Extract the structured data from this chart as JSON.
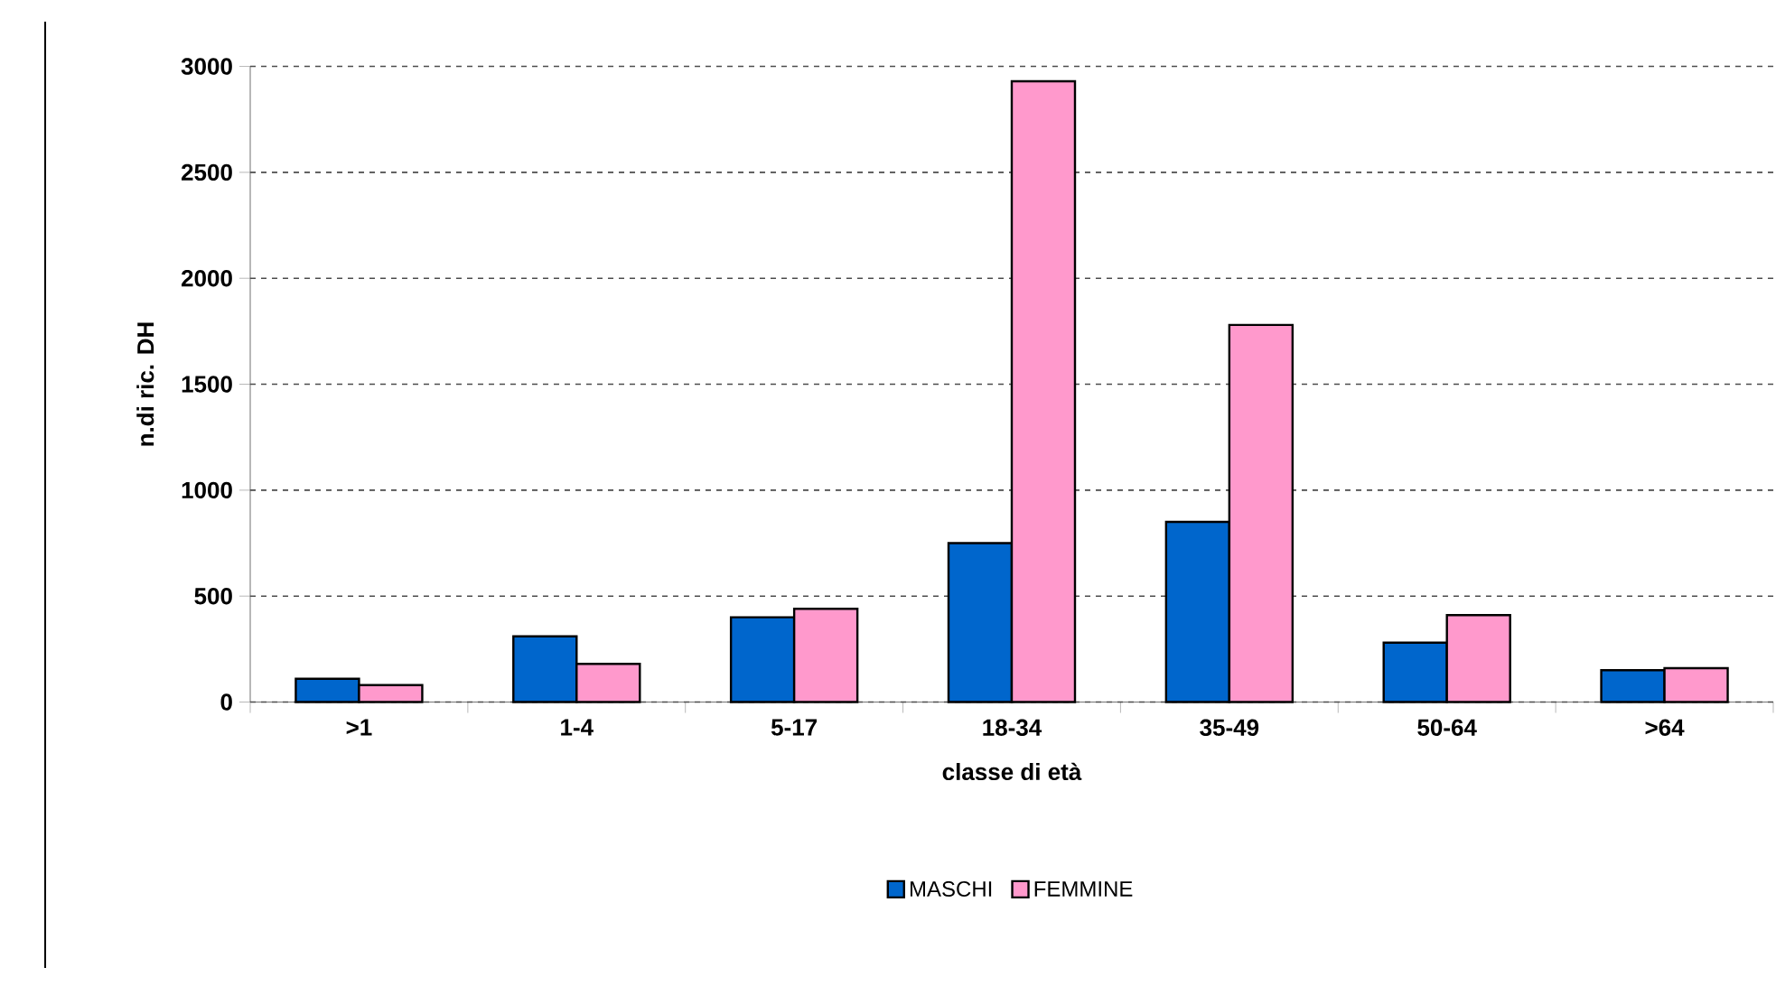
{
  "chart_data": {
    "type": "bar",
    "xlabel": "classe di età",
    "ylabel": "n.di ric. DH",
    "categories": [
      ">1",
      "1-4",
      "5-17",
      "18-34",
      "35-49",
      "50-64",
      ">64"
    ],
    "series": [
      {
        "name": "MASCHI",
        "color": "#0066cc",
        "values": [
          110,
          310,
          400,
          750,
          850,
          280,
          150
        ]
      },
      {
        "name": "FEMMINE",
        "color": "#ff99cc",
        "values": [
          80,
          180,
          440,
          2930,
          1780,
          410,
          160
        ]
      }
    ],
    "ylim": [
      0,
      3000
    ],
    "yticks": [
      0,
      500,
      1000,
      1500,
      2000,
      2500,
      3000
    ],
    "grid": "y",
    "legend": "bottom"
  }
}
